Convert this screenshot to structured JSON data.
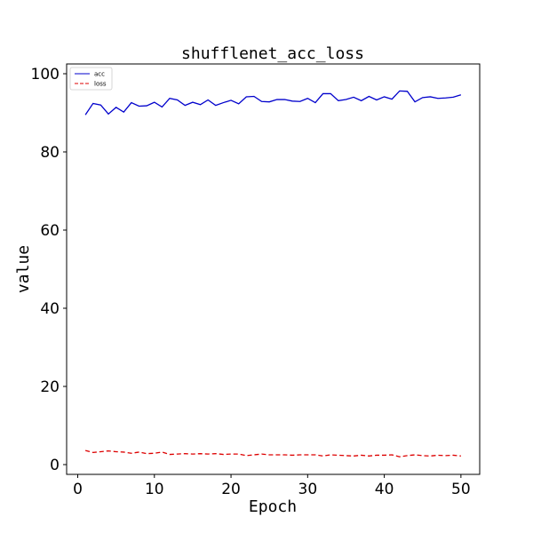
{
  "chart_data": {
    "type": "line",
    "title": "shufflenet_acc_loss",
    "xlabel": "Epoch",
    "ylabel": "value",
    "xlim": [
      -1.45,
      52.45
    ],
    "ylim": [
      -2.5,
      102.5
    ],
    "xticks": [
      0,
      10,
      20,
      30,
      40,
      50
    ],
    "yticks": [
      0,
      20,
      40,
      60,
      80,
      100
    ],
    "grid": false,
    "legend": "top-left",
    "x": [
      1,
      2,
      3,
      4,
      5,
      6,
      7,
      8,
      9,
      10,
      11,
      12,
      13,
      14,
      15,
      16,
      17,
      18,
      19,
      20,
      21,
      22,
      23,
      24,
      25,
      26,
      27,
      28,
      29,
      30,
      31,
      32,
      33,
      34,
      35,
      36,
      37,
      38,
      39,
      40,
      41,
      42,
      43,
      44,
      45,
      46,
      47,
      48,
      49,
      50
    ],
    "series": [
      {
        "name": "acc",
        "color": "#0000cc",
        "dash": "solid",
        "values": [
          89.5,
          92.4,
          92.0,
          89.7,
          91.4,
          90.2,
          92.6,
          91.7,
          91.8,
          92.7,
          91.5,
          93.7,
          93.3,
          91.9,
          92.7,
          92.1,
          93.3,
          91.9,
          92.6,
          93.2,
          92.3,
          94.1,
          94.2,
          92.9,
          92.8,
          93.4,
          93.4,
          93.0,
          92.9,
          93.7,
          92.6,
          94.9,
          94.9,
          93.1,
          93.4,
          94.0,
          93.1,
          94.2,
          93.3,
          94.1,
          93.5,
          95.6,
          95.5,
          92.8,
          93.9,
          94.1,
          93.7,
          93.8,
          94.0,
          94.6
        ]
      },
      {
        "name": "loss",
        "color": "#dd0000",
        "dash": "dashed",
        "values": [
          3.6,
          3.1,
          3.3,
          3.5,
          3.3,
          3.2,
          2.9,
          3.2,
          2.8,
          2.9,
          3.2,
          2.6,
          2.7,
          2.8,
          2.7,
          2.8,
          2.7,
          2.8,
          2.6,
          2.7,
          2.7,
          2.3,
          2.5,
          2.7,
          2.5,
          2.5,
          2.5,
          2.4,
          2.5,
          2.5,
          2.5,
          2.2,
          2.5,
          2.4,
          2.3,
          2.2,
          2.4,
          2.2,
          2.4,
          2.4,
          2.5,
          2.0,
          2.3,
          2.5,
          2.3,
          2.2,
          2.4,
          2.3,
          2.4,
          2.2
        ]
      }
    ]
  }
}
